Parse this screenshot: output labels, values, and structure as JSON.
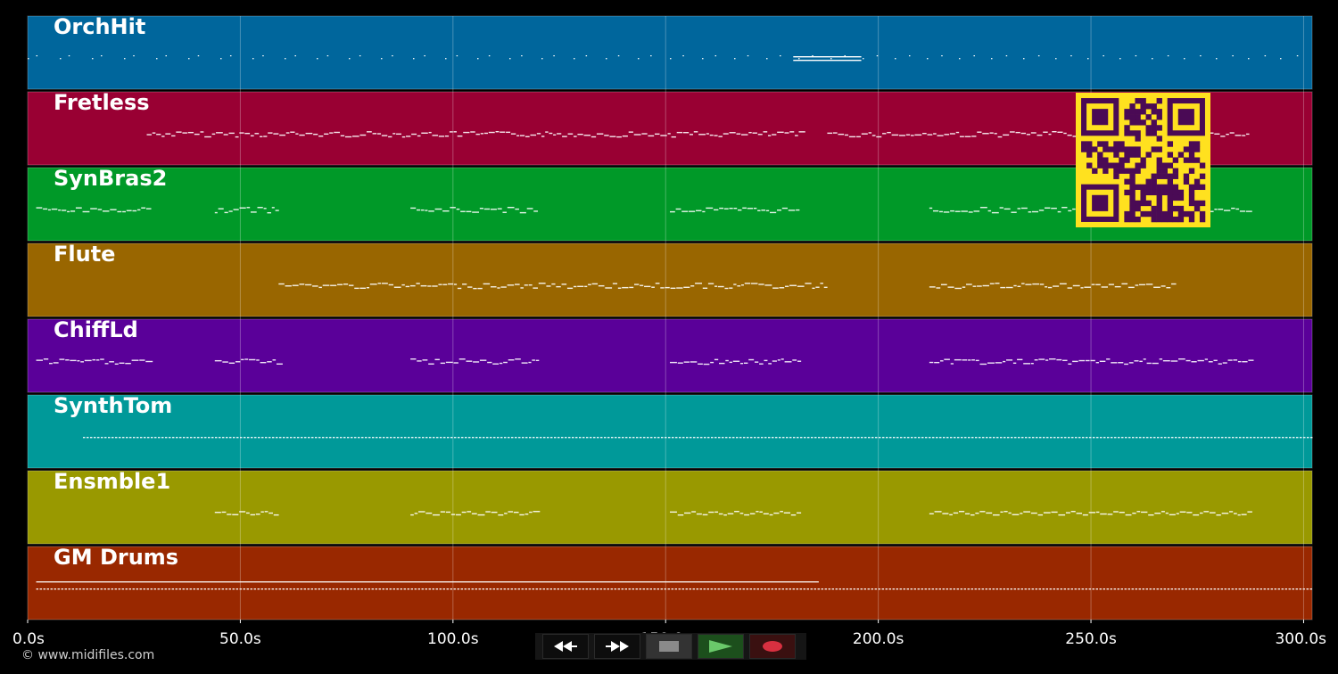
{
  "tracks": [
    {
      "name": "OrchHit",
      "color": "#00669c",
      "style": "dots"
    },
    {
      "name": "Fretless",
      "color": "#990033",
      "style": "line"
    },
    {
      "name": "SynBras2",
      "color": "#009928",
      "style": "line"
    },
    {
      "name": "Flute",
      "color": "#996600",
      "style": "line"
    },
    {
      "name": "ChiffLd",
      "color": "#5a0099",
      "style": "line"
    },
    {
      "name": "SynthTom",
      "color": "#009999",
      "style": "dash"
    },
    {
      "name": "Ensmble1",
      "color": "#999900",
      "style": "wave"
    },
    {
      "name": "GM Drums",
      "color": "#992800",
      "style": "dash"
    }
  ],
  "timeline": {
    "start_s": 0,
    "end_s": 302,
    "ticks": [
      "0.0s",
      "50.0s",
      "100.0s",
      "150.0s",
      "200.0s",
      "250.0s",
      "300.0s"
    ]
  },
  "transport": {
    "rewind": "rewind-icon",
    "fast_forward": "fast-forward-icon",
    "stop": "stop-icon",
    "play": "play-icon",
    "record": "record-icon",
    "play_color": "#6ac96a",
    "record_color": "#d83040"
  },
  "footer": {
    "copyright": "© www.midifiles.com"
  },
  "overlay": {
    "qr_color": "#ffe11f",
    "qr_dark": "#4a0a55"
  }
}
